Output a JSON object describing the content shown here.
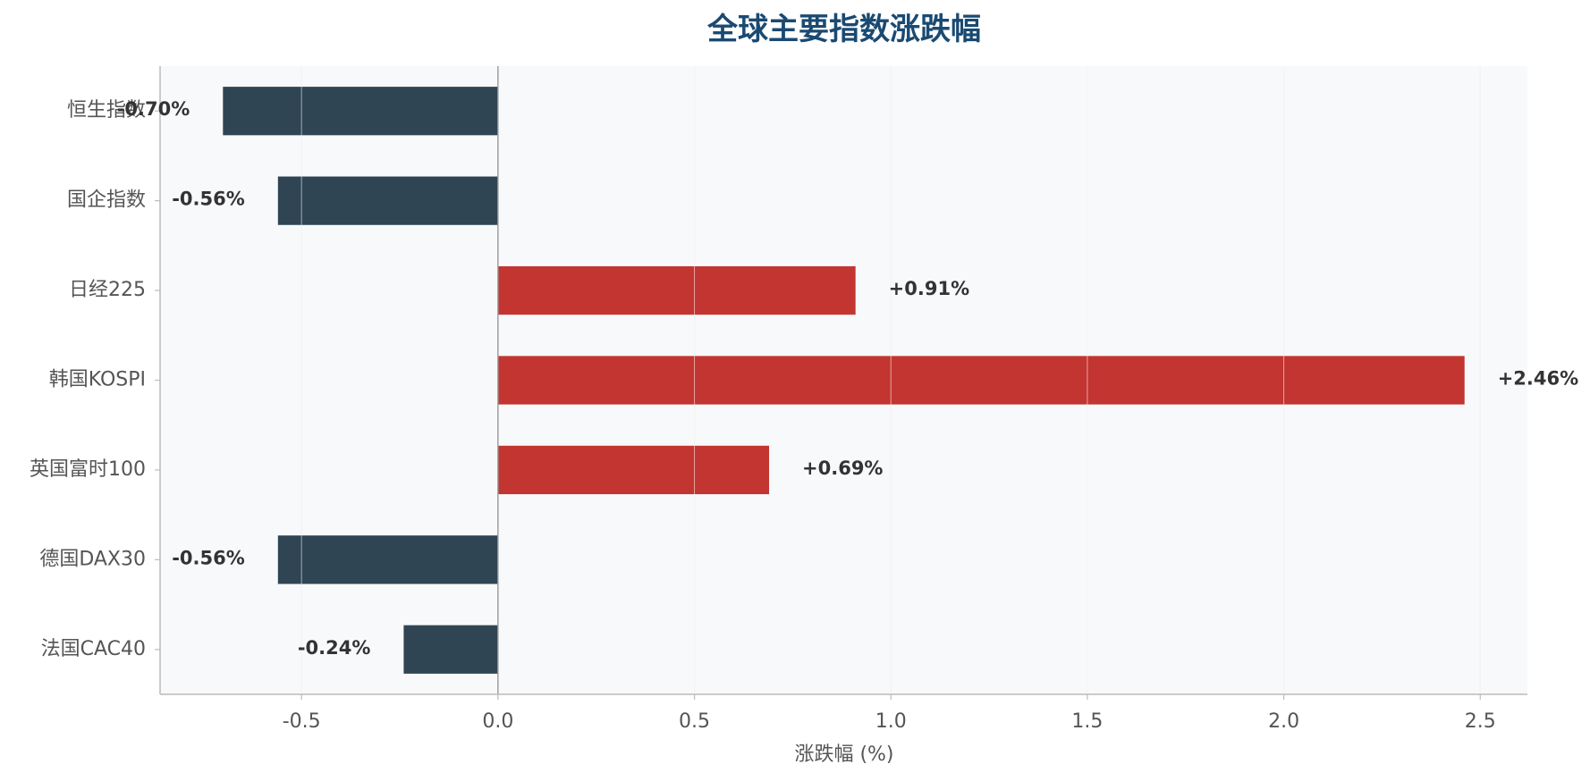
{
  "chart_data": {
    "type": "bar",
    "orientation": "horizontal",
    "title": "全球主要指数涨跌幅",
    "xlabel": "涨跌幅 (%)",
    "ylabel": "",
    "xlim": [
      -0.86,
      2.62
    ],
    "x_ticks": [
      -0.5,
      0.0,
      0.5,
      1.0,
      1.5,
      2.0,
      2.5
    ],
    "x_tick_labels": [
      "-0.5",
      "0.0",
      "0.5",
      "1.0",
      "1.5",
      "2.0",
      "2.5"
    ],
    "categories": [
      "恒生指数",
      "国企指数",
      "日经225",
      "韩国KOSPI",
      "英国富时100",
      "德国DAX30",
      "法国CAC40"
    ],
    "values": [
      -0.7,
      -0.56,
      0.91,
      2.46,
      0.69,
      -0.56,
      -0.24
    ],
    "value_labels": [
      "-0.70%",
      "-0.56%",
      "+0.91%",
      "+2.46%",
      "+0.69%",
      "-0.56%",
      "-0.24%"
    ],
    "grid": "vertical",
    "legend": "none"
  },
  "colors": {
    "positive": "#c23531",
    "negative": "#2f4554",
    "title": "#1a4a72",
    "plot_background": "#f8f9fb",
    "grid": "#e3e6ea",
    "axis": "#bbbbbb",
    "zero_line": "#9a9a9a",
    "tick_text": "#555555",
    "value_text": "#333333"
  }
}
